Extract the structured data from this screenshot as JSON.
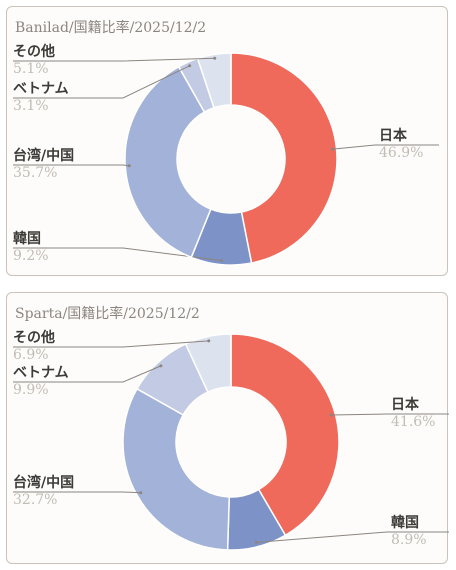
{
  "chart_data": [
    {
      "type": "pie",
      "title": "Banilad/国籍比率/2025/12/2",
      "categories": [
        "日本",
        "韓国",
        "台湾/中国",
        "ベトナム",
        "その他"
      ],
      "labels": [
        "46.9%",
        "9.2%",
        "35.7%",
        "3.1%",
        "5.1%"
      ],
      "values": [
        46.9,
        9.2,
        35.7,
        3.1,
        5.1
      ],
      "colors": [
        "#ef6a5a",
        "#7d92c6",
        "#a3b2d8",
        "#c2cbe3",
        "#dde2ef"
      ]
    },
    {
      "type": "pie",
      "title": "Sparta/国籍比率/2025/12/2",
      "categories": [
        "日本",
        "韓国",
        "台湾/中国",
        "ベトナム",
        "その他"
      ],
      "labels": [
        "41.6%",
        "8.9%",
        "32.7%",
        "9.9%",
        "6.9%"
      ],
      "values": [
        41.6,
        8.9,
        32.7,
        9.9,
        6.9
      ],
      "colors": [
        "#ef6a5a",
        "#7d92c6",
        "#a3b2d8",
        "#c2cbe3",
        "#dde2ef"
      ]
    }
  ]
}
